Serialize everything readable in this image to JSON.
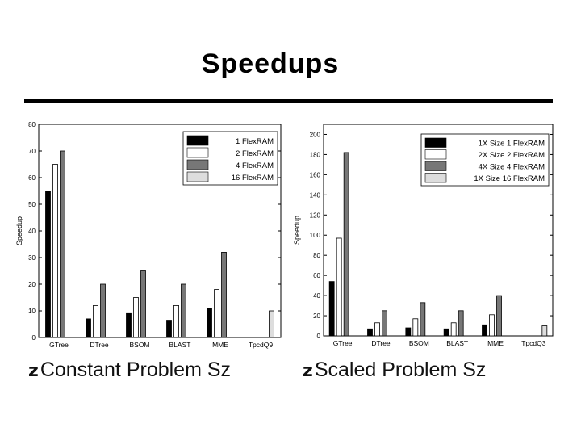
{
  "title": "Speedups",
  "captions": {
    "left": "Constant Problem Sz",
    "right": "Scaled Problem Sz",
    "bullet": "z"
  },
  "colors": [
    "#000000",
    "#ffffff",
    "#777777",
    "#dddddd"
  ],
  "chart_data": [
    {
      "type": "bar",
      "categories": [
        "GTree",
        "DTree",
        "BSOM",
        "BLAST",
        "MME",
        "TpcdQ9"
      ],
      "ylabel": "Speedup",
      "ylim": [
        0,
        80
      ],
      "yticks": [
        0,
        10,
        20,
        30,
        40,
        50,
        60,
        70,
        80
      ],
      "legend_position": "top-right",
      "series": [
        {
          "name": "1  FlexRAM",
          "values": [
            55,
            7,
            9,
            6.5,
            11,
            0
          ]
        },
        {
          "name": "2  FlexRAM",
          "values": [
            65,
            12,
            15,
            12,
            18,
            0
          ]
        },
        {
          "name": "4  FlexRAM",
          "values": [
            70,
            20,
            25,
            20,
            32,
            0
          ]
        },
        {
          "name": "16 FlexRAM",
          "values": [
            0,
            0,
            0,
            0,
            0,
            10
          ]
        }
      ]
    },
    {
      "type": "bar",
      "categories": [
        "GTree",
        "DTree",
        "BSOM",
        "BLAST",
        "MME",
        "TpcdQ3"
      ],
      "ylabel": "Speedup",
      "ylim": [
        0,
        210
      ],
      "yticks": [
        0,
        20,
        40,
        60,
        80,
        100,
        120,
        140,
        160,
        180,
        200
      ],
      "legend_position": "top-right",
      "series": [
        {
          "name": "1X Size 1 FlexRAM",
          "values": [
            54,
            7,
            8,
            7,
            11,
            0
          ]
        },
        {
          "name": "2X Size 2 FlexRAM",
          "values": [
            97,
            13,
            17,
            13,
            21,
            0
          ]
        },
        {
          "name": "4X Size 4 FlexRAM",
          "values": [
            182,
            25,
            33,
            25,
            40,
            0
          ]
        },
        {
          "name": "1X Size 16 FlexRAM",
          "values": [
            0,
            0,
            0,
            0,
            0,
            10
          ]
        }
      ]
    }
  ]
}
